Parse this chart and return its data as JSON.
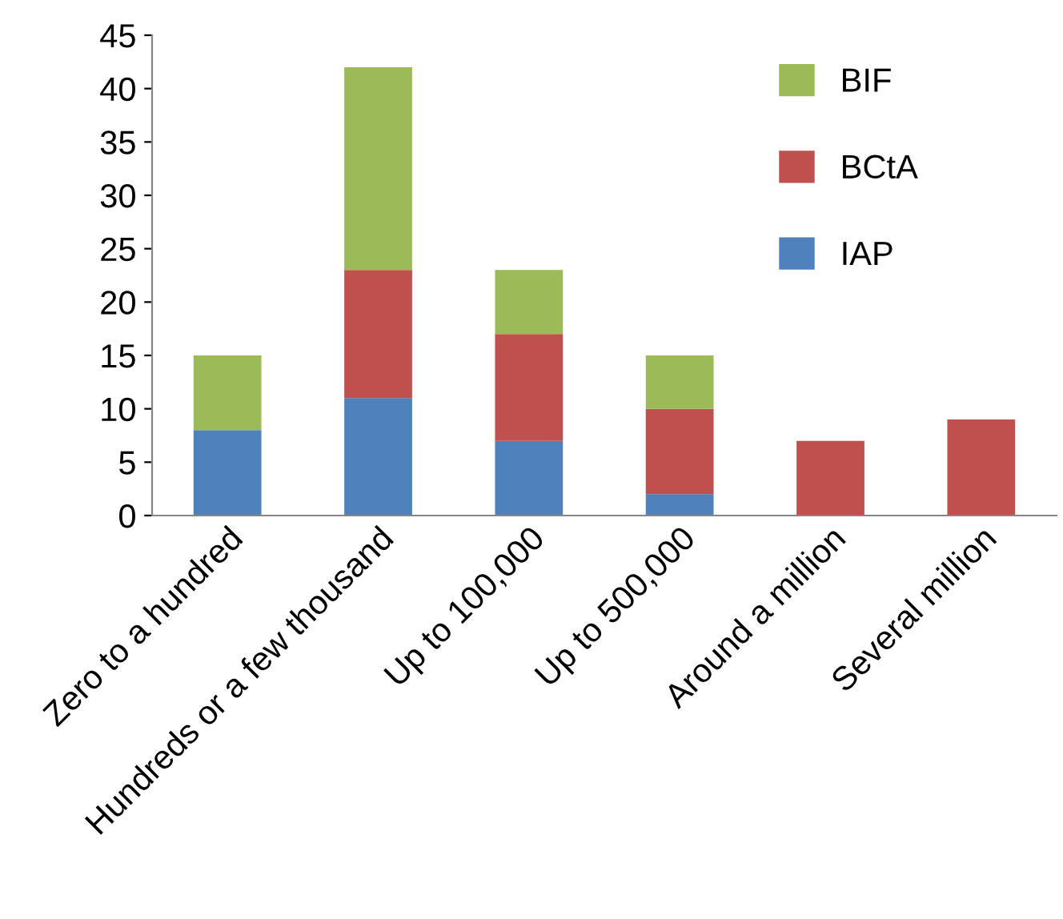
{
  "chart_data": {
    "type": "bar",
    "stacked": true,
    "categories": [
      "Zero to a hundred",
      "Hundreds or a few thousand",
      "Up to 100,000",
      "Up to 500,000",
      "Around a million",
      "Several million"
    ],
    "series": [
      {
        "name": "IAP",
        "color": "#4f81bd",
        "values": [
          8,
          11,
          7,
          2,
          0,
          0
        ]
      },
      {
        "name": "BCtA",
        "color": "#c0504d",
        "values": [
          0,
          12,
          10,
          8,
          7,
          9
        ]
      },
      {
        "name": "BIF",
        "color": "#9bbb59",
        "values": [
          7,
          19,
          6,
          5,
          0,
          0
        ]
      }
    ],
    "ylim": [
      0,
      45
    ],
    "yticks": [
      0,
      5,
      10,
      15,
      20,
      25,
      30,
      35,
      40,
      45
    ],
    "grid": false,
    "legend": "top right"
  }
}
